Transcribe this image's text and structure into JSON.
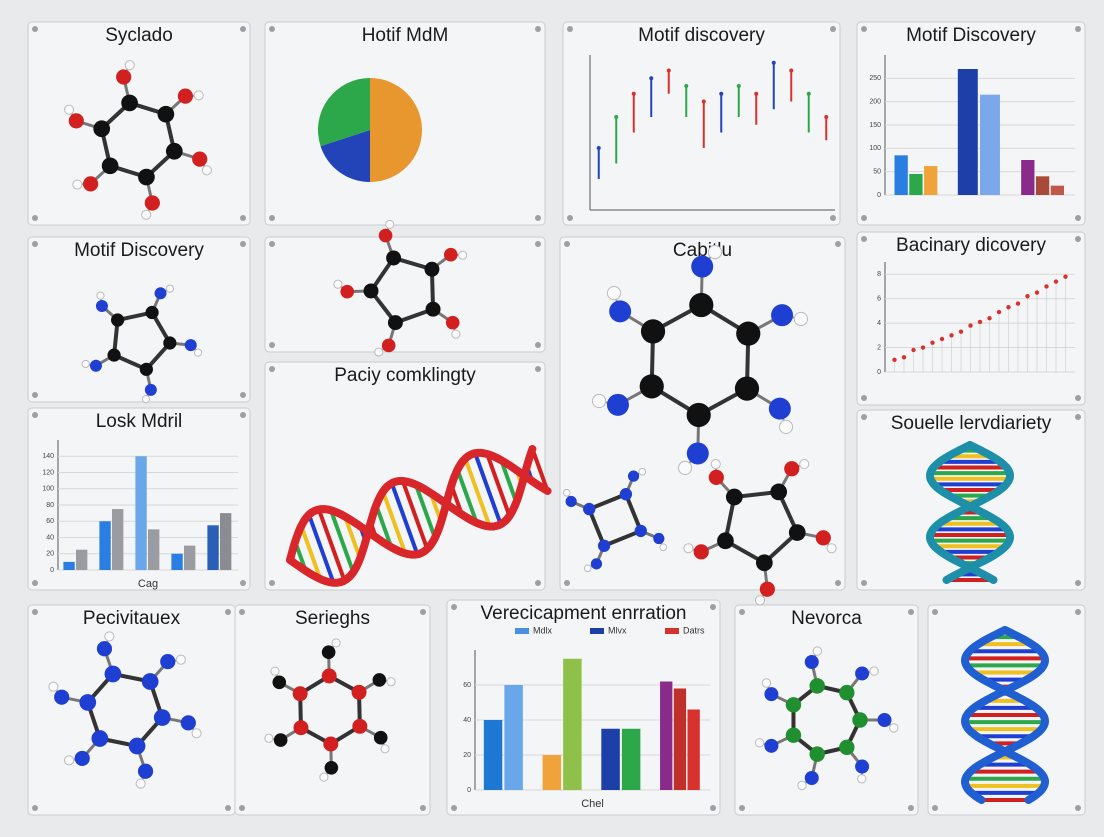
{
  "panels": [
    {
      "title": "Syclado"
    },
    {
      "title": "Hotif MdM"
    },
    {
      "title": "Motif discovery"
    },
    {
      "title": "Motif Discovery"
    },
    {
      "title": "Motif Discovery"
    },
    {
      "title": "Cabitlu"
    },
    {
      "title": "Bacinary dicovery"
    },
    {
      "title": "Losk Mdril"
    },
    {
      "title": "Paciy comklingty"
    },
    {
      "title": "Souelle lervdiariety"
    },
    {
      "title": "Pecivitauex"
    },
    {
      "title": "Serieghs"
    },
    {
      "title": "Verecicapment enrration"
    },
    {
      "title": "Nevorca"
    }
  ],
  "chart_data": [
    {
      "type": "pie",
      "values": [
        50,
        20,
        30
      ],
      "colors": [
        "#e8962e",
        "#2344b8",
        "#2ca84a"
      ]
    },
    {
      "type": "range",
      "low": [
        2,
        3,
        5,
        6,
        7.5,
        6,
        4,
        5,
        6,
        5.5,
        6.5,
        7,
        5,
        4.5
      ],
      "high": [
        4,
        6,
        7.5,
        8.5,
        9,
        8,
        7,
        7.5,
        8,
        7.5,
        9.5,
        9,
        7.5,
        6
      ],
      "colors": [
        "#2344b8",
        "#2ca84a",
        "#d8322e",
        "#2344b8",
        "#d8322e",
        "#2ca84a",
        "#d8322e",
        "#2344b8",
        "#2ca84a",
        "#d8322e",
        "#2344b8",
        "#d8322e",
        "#2ca84a",
        "#d8322e"
      ],
      "ylim": [
        0,
        10
      ]
    },
    {
      "type": "bar",
      "groups": [
        {
          "values": [
            85,
            45,
            62
          ],
          "colors": [
            "#2a7de1",
            "#2ca84a",
            "#f0a33a"
          ]
        },
        {
          "values": [
            270,
            215
          ],
          "colors": [
            "#1d3fa8",
            "#7aa8ea"
          ]
        },
        {
          "values": [
            75,
            40,
            20
          ],
          "colors": [
            "#8a2a8a",
            "#a84a3a",
            "#c0584a"
          ]
        }
      ],
      "ylim": [
        0,
        300
      ],
      "yticks": [
        0,
        50,
        100,
        150,
        200,
        250
      ]
    },
    {
      "type": "scatter",
      "x": [
        0.5,
        1,
        1.5,
        2,
        2.5,
        3,
        3.5,
        4,
        4.5,
        5,
        5.5,
        6,
        6.5,
        7,
        7.5,
        8,
        8.5,
        9,
        9.5
      ],
      "y": [
        1,
        1.2,
        1.8,
        2,
        2.4,
        2.7,
        3,
        3.3,
        3.8,
        4.1,
        4.4,
        4.9,
        5.3,
        5.6,
        6.2,
        6.5,
        7,
        7.4,
        7.8
      ],
      "color": "#d8322e",
      "xlim": [
        0,
        10
      ],
      "ylim": [
        0,
        9
      ],
      "yticks": [
        0,
        2,
        4,
        6,
        8
      ]
    },
    {
      "type": "bar",
      "groups": [
        {
          "values": [
            10,
            25
          ],
          "colors": [
            "#2a7de1",
            "#9a9ca2"
          ]
        },
        {
          "values": [
            60,
            75
          ],
          "colors": [
            "#2a7de1",
            "#9a9ca2"
          ]
        },
        {
          "values": [
            140,
            50
          ],
          "colors": [
            "#6aa6ea",
            "#9a9ca2"
          ]
        },
        {
          "values": [
            20,
            30
          ],
          "colors": [
            "#2a7de1",
            "#9a9ca2"
          ]
        },
        {
          "values": [
            55,
            70
          ],
          "colors": [
            "#2a5fb8",
            "#8a8c92"
          ]
        }
      ],
      "ylim": [
        0,
        160
      ],
      "yticks": [
        0,
        20,
        40,
        60,
        80,
        100,
        120,
        140
      ],
      "x_label": "Cag"
    },
    {
      "type": "bar",
      "groups": [
        {
          "values": [
            40,
            60
          ],
          "colors": [
            "#1f77d4",
            "#6aa6ea"
          ]
        },
        {
          "values": [
            20,
            75
          ],
          "colors": [
            "#f0a33a",
            "#8fc14a"
          ]
        },
        {
          "values": [
            35,
            35
          ],
          "colors": [
            "#1d3fa8",
            "#2ca84a"
          ]
        },
        {
          "values": [
            62,
            58,
            46
          ],
          "colors": [
            "#8a2a8a",
            "#c0302a",
            "#d8322e"
          ]
        }
      ],
      "ylim": [
        0,
        80
      ],
      "yticks": [
        0,
        20,
        40,
        60
      ],
      "x_label": "Chel",
      "legend": [
        {
          "name": "Mdlx",
          "color": "#4a90e2"
        },
        {
          "name": "Mlvx",
          "color": "#1d3fa8"
        },
        {
          "name": "Datrs",
          "color": "#d8322e"
        }
      ]
    }
  ]
}
